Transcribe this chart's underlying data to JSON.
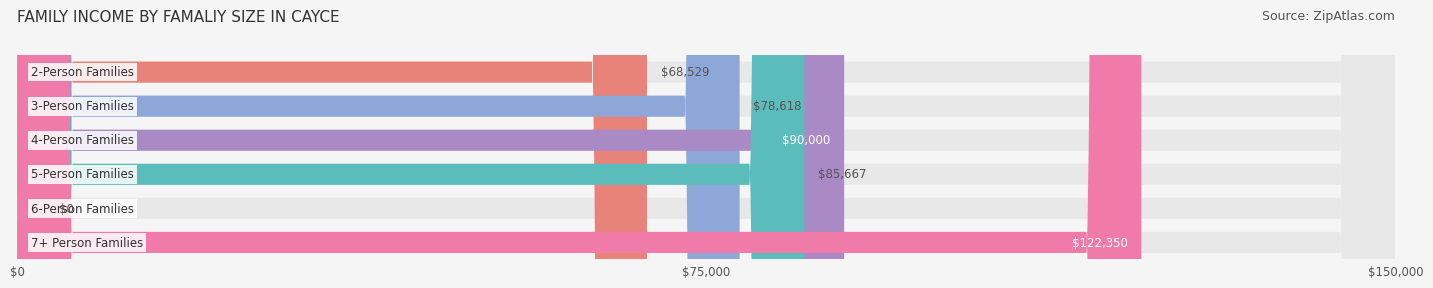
{
  "title": "FAMILY INCOME BY FAMALIY SIZE IN CAYCE",
  "source": "Source: ZipAtlas.com",
  "categories": [
    "2-Person Families",
    "3-Person Families",
    "4-Person Families",
    "5-Person Families",
    "6-Person Families",
    "7+ Person Families"
  ],
  "values": [
    68529,
    78618,
    90000,
    85667,
    0,
    122350
  ],
  "bar_colors": [
    "#E8837A",
    "#8DA8D8",
    "#A98AC4",
    "#5BBCBC",
    "#B0B8E8",
    "#F07BA8"
  ],
  "bar_height": 0.62,
  "xlim": [
    0,
    150000
  ],
  "xticks": [
    0,
    75000,
    150000
  ],
  "xtick_labels": [
    "$0",
    "$75,000",
    "$150,000"
  ],
  "value_labels": [
    "$68,529",
    "$78,618",
    "$90,000",
    "$85,667",
    "$0",
    "$122,350"
  ],
  "value_label_inside": [
    false,
    false,
    true,
    false,
    false,
    true
  ],
  "bg_color": "#f5f5f5",
  "bar_bg_color": "#e8e8e8",
  "title_fontsize": 11,
  "source_fontsize": 9,
  "label_fontsize": 8.5,
  "value_fontsize": 8.5,
  "tick_fontsize": 8.5
}
